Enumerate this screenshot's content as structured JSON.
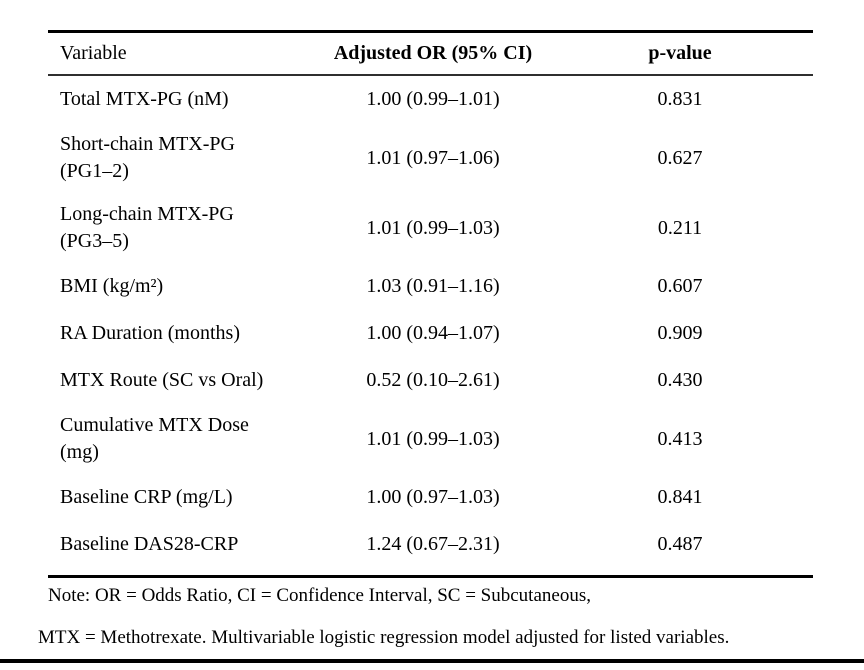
{
  "page": {
    "background": "#ffffff",
    "text_color": "#000000",
    "rule_color": "#000000"
  },
  "table": {
    "columns": [
      {
        "label": "Variable"
      },
      {
        "label": "Adjusted OR (95% CI)"
      },
      {
        "label": "p-value"
      }
    ],
    "rows": [
      {
        "variable_line1": "Total MTX-PG (nM)",
        "variable_line2": "",
        "or_ci": "1.00 (0.99–1.01)",
        "p_value": "0.831"
      },
      {
        "variable_line1": "Short-chain MTX-PG",
        "variable_line2": "(PG1–2)",
        "or_ci": "1.01 (0.97–1.06)",
        "p_value": "0.627"
      },
      {
        "variable_line1": "Long-chain MTX-PG",
        "variable_line2": "(PG3–5)",
        "or_ci": "1.01 (0.99–1.03)",
        "p_value": "0.211"
      },
      {
        "variable_line1": "BMI (kg/m²)",
        "variable_line2": "",
        "or_ci": "1.03 (0.91–1.16)",
        "p_value": "0.607"
      },
      {
        "variable_line1": "RA Duration (months)",
        "variable_line2": "",
        "or_ci": "1.00 (0.94–1.07)",
        "p_value": "0.909"
      },
      {
        "variable_line1": "MTX Route (SC vs Oral)",
        "variable_line2": "",
        "or_ci": "0.52 (0.10–2.61)",
        "p_value": "0.430"
      },
      {
        "variable_line1": "Cumulative MTX Dose",
        "variable_line2": "(mg)",
        "or_ci": "1.01 (0.99–1.03)",
        "p_value": "0.413"
      },
      {
        "variable_line1": "Baseline CRP (mg/L)",
        "variable_line2": "",
        "or_ci": "1.00 (0.97–1.03)",
        "p_value": "0.841"
      },
      {
        "variable_line1": "Baseline DAS28-CRP",
        "variable_line2": "",
        "or_ci": "1.24 (0.67–2.31)",
        "p_value": "0.487"
      }
    ],
    "notes": [
      "Note: OR = Odds Ratio, CI = Confidence Interval, SC = Subcutaneous,",
      "MTX = Methotrexate. Multivariable logistic regression model adjusted for listed variables."
    ]
  }
}
